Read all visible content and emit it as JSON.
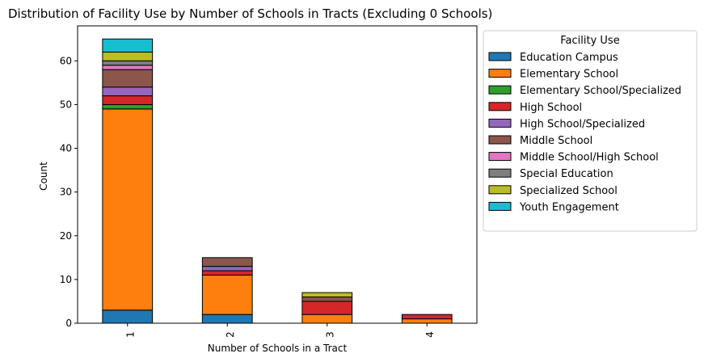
{
  "chart_data": {
    "type": "bar",
    "stacked": true,
    "title": "Distribution of Facility Use by Number of Schools in Tracts (Excluding 0 Schools)",
    "xlabel": "Number of Schools in a Tract",
    "ylabel": "Count",
    "categories": [
      "1",
      "2",
      "3",
      "4"
    ],
    "ylim": [
      0,
      68
    ],
    "yticks": [
      0,
      10,
      20,
      30,
      40,
      50,
      60
    ],
    "legend_title": "Facility Use",
    "legend_placement": "outside-right",
    "series": [
      {
        "name": "Education Campus",
        "color": "#1f77b4",
        "values": [
          3,
          2,
          0,
          0
        ]
      },
      {
        "name": "Elementary School",
        "color": "#ff7f0e",
        "values": [
          46,
          9,
          2,
          1
        ]
      },
      {
        "name": "Elementary School/Specialized",
        "color": "#2ca02c",
        "values": [
          1,
          0,
          0,
          0
        ]
      },
      {
        "name": "High School",
        "color": "#d62728",
        "values": [
          2,
          1,
          3,
          1
        ]
      },
      {
        "name": "High School/Specialized",
        "color": "#9467bd",
        "values": [
          2,
          1,
          0,
          0
        ]
      },
      {
        "name": "Middle School",
        "color": "#8c564b",
        "values": [
          4,
          2,
          1,
          0
        ]
      },
      {
        "name": "Middle School/High School",
        "color": "#e377c2",
        "values": [
          1,
          0,
          0,
          0
        ]
      },
      {
        "name": "Special Education",
        "color": "#7f7f7f",
        "values": [
          1,
          0,
          0,
          0
        ]
      },
      {
        "name": "Specialized School",
        "color": "#bcbd22",
        "values": [
          2,
          0,
          1,
          0
        ]
      },
      {
        "name": "Youth Engagement",
        "color": "#17becf",
        "values": [
          3,
          0,
          0,
          0
        ]
      }
    ]
  }
}
